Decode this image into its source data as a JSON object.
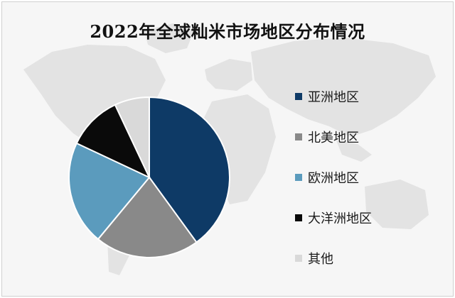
{
  "colors": {
    "background": "#f6f6f6",
    "map": "#e3e3e3",
    "slice_border": "#ffffff"
  },
  "chart_data": {
    "type": "pie",
    "title": "2022年全球籼米市场地区分布情况",
    "categories": [
      "亚洲地区",
      "北美地区",
      "欧洲地区",
      "大洋洲地区",
      "其他"
    ],
    "values": [
      40,
      21,
      21,
      11,
      7
    ],
    "unit": "%",
    "start_angle_deg": 0,
    "direction": "clockwise",
    "colors": [
      "#0e3a66",
      "#898989",
      "#5b9bbd",
      "#0a0a0a",
      "#d9d9d9"
    ],
    "legend_position": "right"
  }
}
